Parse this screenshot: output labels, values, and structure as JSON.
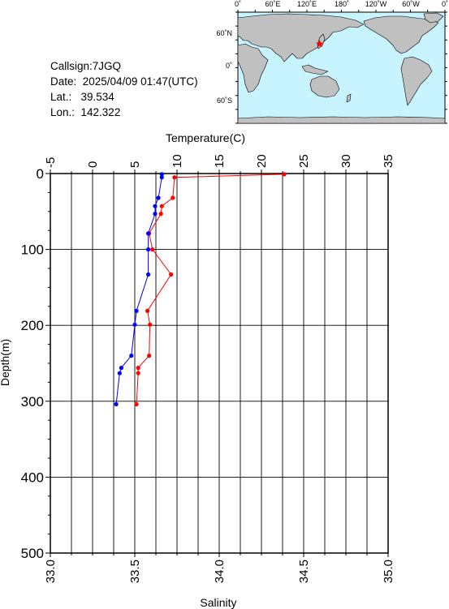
{
  "station": {
    "callsign": "Callsign:7JGQ",
    "date": "Date:  2025/04/09 01:47(UTC)",
    "lat": "Lat.:   39.534",
    "lon": "Lon.:  142.322"
  },
  "map": {
    "top_labels": [
      "0˚",
      "60˚E",
      "120˚E",
      "180˚",
      "120˚W",
      "60˚W",
      "0˚"
    ],
    "left_labels": [
      "60˚N",
      "0˚",
      "60˚S"
    ],
    "ocean_color": "#c8f4ff",
    "land_color": "#c0c0c0",
    "marker_color": "#ff0000",
    "station_lat": 39.534,
    "station_lon": 142.322
  },
  "chart_data": {
    "type": "line",
    "top_axis": {
      "label": "Temperature(C)",
      "range": [
        -5,
        35
      ],
      "ticks": [
        "-5",
        "0",
        "5",
        "10",
        "15",
        "20",
        "25",
        "30",
        "35"
      ]
    },
    "bottom_axis": {
      "label": "Salinity",
      "range": [
        33.0,
        35.0
      ],
      "ticks": [
        "33.0",
        "33.5",
        "34.0",
        "34.5",
        "35.0"
      ]
    },
    "y_axis": {
      "label": "Depth(m)",
      "range": [
        0,
        500
      ],
      "inverted": true,
      "ticks": [
        "0",
        "100",
        "200",
        "300",
        "400",
        "500"
      ]
    },
    "grid": true,
    "series": [
      {
        "axis": "top",
        "color": "#ff0000",
        "points": [
          {
            "value": 22.7,
            "depth": 1
          },
          {
            "value": 9.7,
            "depth": 5
          },
          {
            "value": 9.5,
            "depth": 32
          },
          {
            "value": 8.2,
            "depth": 43
          },
          {
            "value": 8.1,
            "depth": 53
          },
          {
            "value": 6.7,
            "depth": 79
          },
          {
            "value": 7.1,
            "depth": 100
          },
          {
            "value": 9.3,
            "depth": 133
          },
          {
            "value": 6.5,
            "depth": 181
          },
          {
            "value": 6.8,
            "depth": 199
          },
          {
            "value": 6.7,
            "depth": 240
          },
          {
            "value": 5.4,
            "depth": 256
          },
          {
            "value": 5.4,
            "depth": 263
          },
          {
            "value": 5.2,
            "depth": 304
          }
        ]
      },
      {
        "axis": "bottom",
        "color": "#0000ff",
        "points": [
          {
            "value": 33.66,
            "depth": 1
          },
          {
            "value": 33.66,
            "depth": 5
          },
          {
            "value": 33.64,
            "depth": 32
          },
          {
            "value": 33.62,
            "depth": 43
          },
          {
            "value": 33.62,
            "depth": 53
          },
          {
            "value": 33.58,
            "depth": 79
          },
          {
            "value": 33.58,
            "depth": 100
          },
          {
            "value": 33.58,
            "depth": 133
          },
          {
            "value": 33.51,
            "depth": 181
          },
          {
            "value": 33.5,
            "depth": 199
          },
          {
            "value": 33.48,
            "depth": 240
          },
          {
            "value": 33.42,
            "depth": 256
          },
          {
            "value": 33.41,
            "depth": 263
          },
          {
            "value": 33.39,
            "depth": 304
          }
        ]
      }
    ]
  }
}
